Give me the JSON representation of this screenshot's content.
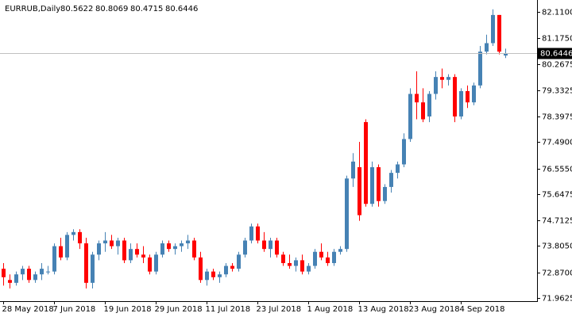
{
  "chart_data": {
    "type": "candlestick",
    "title": "EURRUB,Daily",
    "categories": [
      "28 May 2018",
      null,
      null,
      null,
      null,
      null,
      null,
      null,
      "7 Jun 2018",
      null,
      null,
      null,
      null,
      null,
      null,
      null,
      "19 Jun 2018",
      null,
      null,
      null,
      null,
      null,
      null,
      null,
      "29 Jun 2018",
      null,
      null,
      null,
      null,
      null,
      null,
      null,
      "11 Jul 2018",
      null,
      null,
      null,
      null,
      null,
      null,
      null,
      "23 Jul 2018",
      null,
      null,
      null,
      null,
      null,
      null,
      null,
      "1 Aug 2018",
      null,
      null,
      null,
      null,
      null,
      null,
      null,
      "13 Aug 2018",
      null,
      null,
      null,
      null,
      null,
      null,
      null,
      "23 Aug 2018",
      null,
      null,
      null,
      null,
      null,
      null,
      null,
      "4 Sep 2018",
      null,
      null,
      null,
      null,
      null,
      null,
      null
    ],
    "open": [
      73.0,
      72.6,
      72.5,
      72.8,
      73.0,
      72.6,
      72.8,
      72.9,
      72.9,
      73.8,
      73.4,
      74.2,
      74.3,
      73.9,
      72.5,
      73.5,
      73.9,
      74.0,
      73.8,
      74.0,
      73.3,
      73.7,
      73.5,
      73.4,
      72.9,
      73.5,
      73.9,
      73.7,
      73.8,
      73.9,
      74.0,
      73.4,
      72.6,
      72.9,
      72.7,
      72.8,
      73.1,
      73.0,
      73.5,
      74.0,
      74.5,
      74.0,
      73.7,
      74.0,
      73.5,
      73.2,
      73.1,
      73.3,
      72.9,
      73.1,
      73.6,
      73.4,
      73.2,
      73.6,
      73.7,
      76.2,
      76.6,
      78.2,
      75.3,
      76.6,
      75.4,
      75.9,
      76.4,
      76.7,
      77.6,
      79.2,
      78.9,
      78.4,
      79.2,
      79.8,
      79.7,
      79.8,
      78.4,
      79.3,
      78.9,
      79.5,
      80.7,
      81.0,
      82.0,
      80.5622
    ],
    "high": [
      73.2,
      72.8,
      72.9,
      73.1,
      73.1,
      72.9,
      73.2,
      73.1,
      73.9,
      74.1,
      74.3,
      74.4,
      74.4,
      74.1,
      73.6,
      74.0,
      74.3,
      74.2,
      74.1,
      74.1,
      73.9,
      73.9,
      73.8,
      73.5,
      73.6,
      74.0,
      74.0,
      73.9,
      74.0,
      74.2,
      74.1,
      73.6,
      73.0,
      73.0,
      72.9,
      73.2,
      73.2,
      73.6,
      74.1,
      74.6,
      74.6,
      74.3,
      74.1,
      74.1,
      73.6,
      73.5,
      73.4,
      73.5,
      73.2,
      73.7,
      73.9,
      73.6,
      73.7,
      73.8,
      76.3,
      77.1,
      77.5,
      78.3,
      76.8,
      76.7,
      76.0,
      76.5,
      76.8,
      77.8,
      79.4,
      80.0,
      79.4,
      79.3,
      80.0,
      80.1,
      79.9,
      79.9,
      79.4,
      79.5,
      79.6,
      80.9,
      81.3,
      82.2,
      82.0,
      80.8069
    ],
    "low": [
      72.4,
      72.3,
      72.4,
      72.6,
      72.5,
      72.5,
      72.6,
      72.8,
      72.8,
      73.3,
      73.3,
      74.0,
      73.7,
      72.3,
      72.3,
      73.3,
      73.6,
      73.7,
      73.5,
      73.2,
      73.2,
      73.4,
      73.2,
      72.8,
      72.8,
      73.4,
      73.6,
      73.5,
      73.6,
      73.7,
      73.3,
      72.5,
      72.4,
      72.6,
      72.5,
      72.7,
      72.9,
      72.9,
      73.4,
      73.9,
      73.9,
      73.6,
      73.4,
      73.4,
      73.1,
      73.0,
      72.9,
      72.8,
      72.8,
      73.0,
      73.3,
      73.1,
      73.1,
      73.5,
      73.6,
      75.9,
      74.7,
      75.2,
      75.2,
      75.2,
      75.3,
      75.7,
      76.2,
      76.6,
      77.5,
      78.3,
      78.2,
      78.2,
      79.0,
      79.4,
      79.5,
      78.2,
      78.3,
      78.7,
      78.8,
      79.4,
      80.6,
      80.9,
      80.6,
      80.4715
    ],
    "close": [
      72.7,
      72.5,
      72.8,
      73.0,
      72.6,
      72.8,
      73.0,
      72.9,
      73.8,
      73.4,
      74.2,
      74.3,
      73.9,
      72.5,
      73.5,
      73.9,
      74.0,
      73.8,
      74.0,
      73.3,
      73.7,
      73.5,
      73.4,
      72.9,
      73.5,
      73.9,
      73.7,
      73.8,
      73.9,
      74.0,
      73.4,
      72.6,
      72.9,
      72.7,
      72.8,
      73.1,
      73.0,
      73.5,
      74.0,
      74.5,
      74.0,
      73.7,
      74.0,
      73.5,
      73.2,
      73.1,
      73.3,
      72.9,
      73.1,
      73.6,
      73.4,
      73.2,
      73.6,
      73.7,
      76.2,
      76.8,
      74.9,
      75.3,
      76.6,
      75.4,
      75.9,
      76.4,
      76.7,
      77.6,
      79.2,
      78.9,
      78.3,
      79.2,
      79.8,
      79.7,
      79.8,
      78.4,
      79.3,
      78.9,
      79.5,
      80.7,
      81.0,
      82.0,
      80.7,
      80.6446
    ],
    "up_color": "#4682b4",
    "down_color": "#ff0000",
    "ylim": [
      71.85,
      82.39
    ],
    "yticks": [
      {
        "value": 82.11,
        "label": "82.1100"
      },
      {
        "value": 81.175,
        "label": "81.1750"
      },
      {
        "value": 80.2675,
        "label": "80.2675"
      },
      {
        "value": 79.3325,
        "label": "79.3325"
      },
      {
        "value": 78.3975,
        "label": "78.3975"
      },
      {
        "value": 77.49,
        "label": "77.4900"
      },
      {
        "value": 76.555,
        "label": "76.5550"
      },
      {
        "value": 75.6475,
        "label": "75.6475"
      },
      {
        "value": 74.7125,
        "label": "74.7125"
      },
      {
        "value": 73.805,
        "label": "73.8050"
      },
      {
        "value": 72.87,
        "label": "72.8700"
      },
      {
        "value": 71.9625,
        "label": "71.9625"
      }
    ],
    "grid": false
  }
}
